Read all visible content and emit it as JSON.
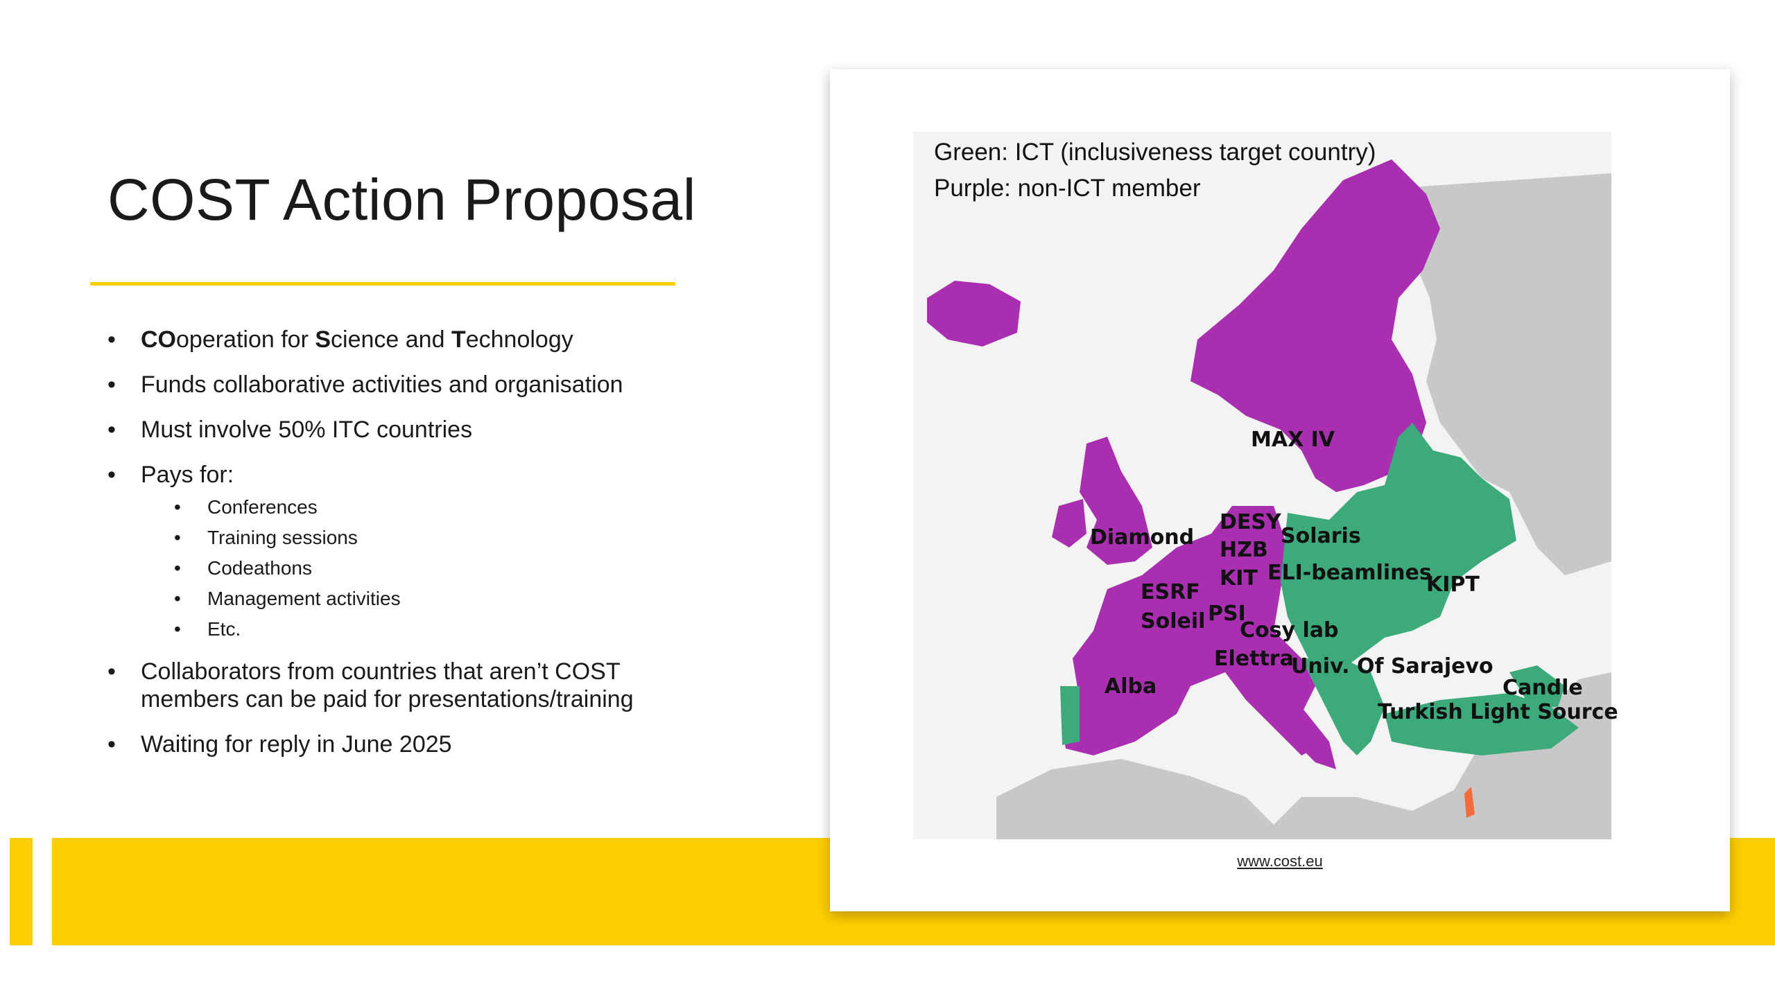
{
  "slide": {
    "title": "COST Action Proposal",
    "bullets": [
      {
        "segments": [
          {
            "text": "CO",
            "bold": true
          },
          {
            "text": "operation for ",
            "bold": false
          },
          {
            "text": "S",
            "bold": true
          },
          {
            "text": "cience and ",
            "bold": false
          },
          {
            "text": "T",
            "bold": true
          },
          {
            "text": "echnology",
            "bold": false
          }
        ]
      },
      {
        "text": "Funds collaborative activities and organisation"
      },
      {
        "text": "Must involve 50% ITC countries"
      },
      {
        "text": "Pays for:",
        "sub": [
          "Conferences",
          "Training sessions",
          "Codeathons",
          "Management activities",
          "Etc."
        ]
      },
      {
        "text_lines": [
          "Collaborators from countries that aren’t COST",
          "members can be paid for presentations/training"
        ]
      },
      {
        "text": "Waiting for reply in June 2025"
      }
    ]
  },
  "map": {
    "legend": [
      "Green: ICT (inclusiveness target country)",
      "Purple: non-ICT member"
    ],
    "colors": {
      "ict": "#3DAA7C",
      "non_ict": "#A92FB0",
      "other": "#C8C8C8",
      "sea": "#F3F3F3",
      "highlight": "#F26B3A",
      "accent": "#FFCE00"
    },
    "labels": [
      "MAX IV",
      "Diamond",
      "DESY",
      "HZB",
      "KIT",
      "Solaris",
      "ELI-beamlines",
      "KIPT",
      "ESRF",
      "Soleil",
      "PSI",
      "Cosy lab",
      "Elettra",
      "Univ. Of Sarajevo",
      "Alba",
      "Candle",
      "Turkish Light Source"
    ],
    "source": "www.cost.eu"
  }
}
